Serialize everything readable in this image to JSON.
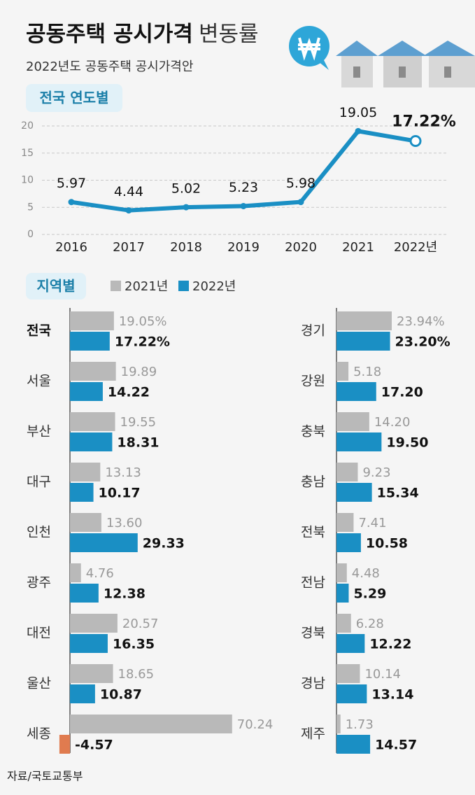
{
  "header": {
    "title": "공동주택 공시가격",
    "title_suffix": "변동률",
    "subtitle": "2022년도 공동주택 공시가격안"
  },
  "source": "자료/국토교통부",
  "chart_data": [
    {
      "type": "line",
      "title": "전국 연도별",
      "categories": [
        "2016",
        "2017",
        "2018",
        "2019",
        "2020",
        "2021",
        "2022년"
      ],
      "values": [
        5.97,
        4.44,
        5.02,
        5.23,
        5.98,
        19.05,
        17.22
      ],
      "value_labels": [
        "5.97",
        "4.44",
        "5.02",
        "5.23",
        "5.98",
        "19.05",
        "17.22%"
      ],
      "color": "#1a8fc4",
      "ylim": [
        0,
        20
      ],
      "yticks": [
        0,
        5,
        10,
        15,
        20
      ],
      "grid": true
    },
    {
      "type": "bar",
      "title": "지역별",
      "orientation": "horizontal",
      "negative_color": "#e07b4f",
      "categories": [
        "전국",
        "서울",
        "부산",
        "대구",
        "인천",
        "광주",
        "대전",
        "울산",
        "세종",
        "경기",
        "강원",
        "충북",
        "충남",
        "전북",
        "전남",
        "경북",
        "경남",
        "제주"
      ],
      "series": [
        {
          "name": "2021년",
          "color": "#b9b9b9",
          "values": [
            19.05,
            19.89,
            19.55,
            13.13,
            13.6,
            4.76,
            20.57,
            18.65,
            70.24,
            23.94,
            5.18,
            14.2,
            9.23,
            7.41,
            4.48,
            6.28,
            10.14,
            1.73
          ],
          "value_labels": [
            "19.05%",
            "19.89",
            "19.55",
            "13.13",
            "13.60",
            "4.76",
            "20.57",
            "18.65",
            "70.24",
            "23.94%",
            "5.18",
            "14.20",
            "9.23",
            "7.41",
            "4.48",
            "6.28",
            "10.14",
            "1.73"
          ]
        },
        {
          "name": "2022년",
          "color": "#1a8fc4",
          "values": [
            17.22,
            14.22,
            18.31,
            10.17,
            29.33,
            12.38,
            16.35,
            10.87,
            -4.57,
            23.2,
            17.2,
            19.5,
            15.34,
            10.58,
            5.29,
            12.22,
            13.14,
            14.57
          ],
          "value_labels": [
            "17.22%",
            "14.22",
            "18.31",
            "10.17",
            "29.33",
            "12.38",
            "16.35",
            "10.87",
            "-4.57",
            "23.20%",
            "17.20",
            "19.50",
            "15.34",
            "10.58",
            "5.29",
            "12.22",
            "13.14",
            "14.57"
          ]
        }
      ]
    }
  ]
}
